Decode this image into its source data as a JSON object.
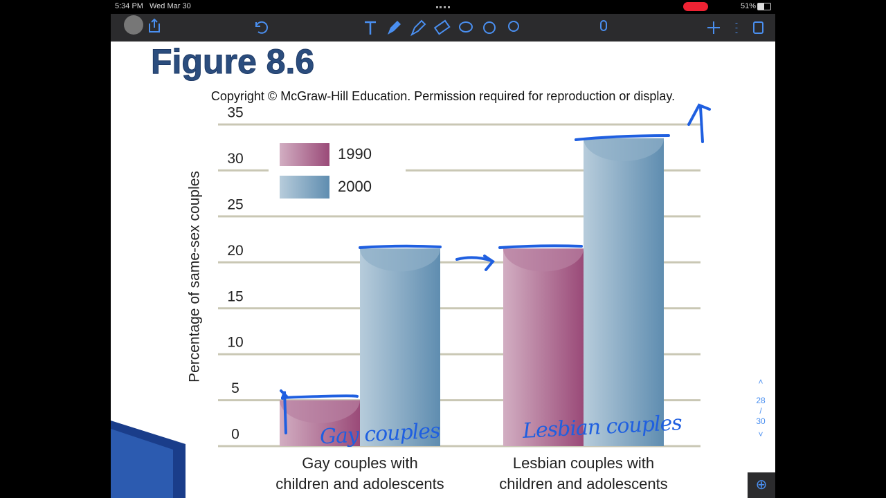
{
  "status_bar": {
    "time": "5:34 PM",
    "date": "Wed Mar 30",
    "battery": "51%"
  },
  "slide": {
    "title": "Figure 8.6",
    "copyright": "Copyright © McGraw-Hill Education. Permission required for reproduction or display."
  },
  "chart_data": {
    "type": "bar",
    "y_label": "Percentage of same-sex couples",
    "categories": [
      "Gay couples with\nchildren and adolescents",
      "Lesbian couples with\nchildren and adolescents"
    ],
    "series": [
      {
        "name": "1990",
        "color": "#9a4a78",
        "values": [
          5,
          21.5
        ]
      },
      {
        "name": "2000",
        "color": "#5f8db0",
        "values": [
          21.5,
          33.5
        ]
      }
    ],
    "ylim": [
      0,
      35
    ],
    "yticks": [
      0,
      5,
      10,
      15,
      20,
      25,
      30,
      35
    ],
    "grid": true,
    "legend": "upper left"
  },
  "handwriting": [
    "Gay couples",
    "Lesbian couples"
  ],
  "page_indicator": {
    "current": "28",
    "total": "30"
  }
}
